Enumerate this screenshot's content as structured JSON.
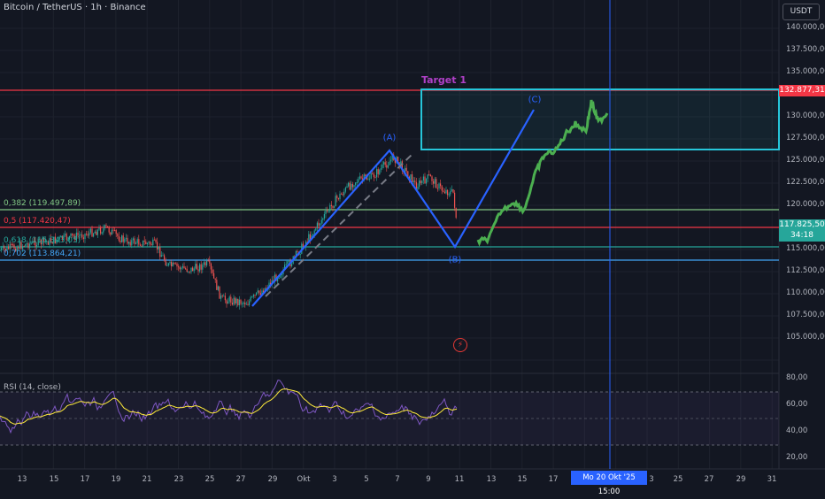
{
  "header": {
    "title": "Bitcoin / TetherUS · 1h · Binance",
    "currency": "USDT"
  },
  "price_axis": {
    "labels": [
      "140.000,00",
      "137.500,00",
      "135.000,00",
      "130.000,00",
      "127.500,00",
      "125.000,00",
      "122.500,00",
      "120.000,00",
      "115.000,00",
      "112.500,00",
      "110.000,00",
      "107.500,00",
      "105.000,00"
    ]
  },
  "price_tags": {
    "target_value": "132.877,31",
    "last_price": "117.825,50",
    "countdown": "34:18"
  },
  "fib_levels": [
    {
      "label": "0,382 (119.497,89)",
      "color": "#81c784"
    },
    {
      "label": "0,5 (117.420,47)",
      "color": "#f23645"
    },
    {
      "label": "0,618 (115.343,05)",
      "color": "#26a69a"
    },
    {
      "label": "0,702 (113.864,21)",
      "color": "#42a5f5"
    }
  ],
  "annotations": {
    "target": "Target 1",
    "wave_a": "(A)",
    "wave_b": "(B)",
    "wave_c": "(C)",
    "bolt": "⚡"
  },
  "rsi": {
    "label": "RSI (14, close)",
    "axis": [
      "80,00",
      "60,00",
      "40,00",
      "20,00"
    ]
  },
  "time_axis": {
    "labels": [
      "13",
      "15",
      "17",
      "19",
      "21",
      "23",
      "25",
      "27",
      "29",
      "Okt",
      "3",
      "5",
      "7",
      "9",
      "11",
      "13",
      "15",
      "17",
      "3",
      "25",
      "27",
      "29",
      "31"
    ],
    "cursor": "Mo 20 Okt '25   15:00"
  },
  "colors": {
    "background": "#131722",
    "wave_line": "#2962ff",
    "target_box": "#26c6da",
    "projection": "#4caf50",
    "rsi_line": "#7e57c2",
    "rsi_ma": "#ffeb3b"
  }
}
